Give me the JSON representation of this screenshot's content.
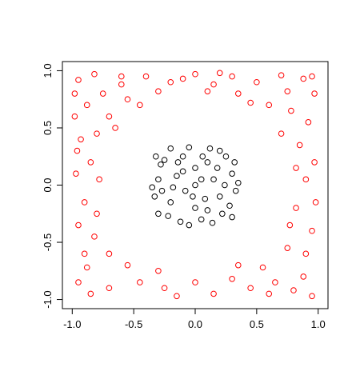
{
  "chart_data": {
    "type": "scatter",
    "xlim": [
      -1.08,
      1.08
    ],
    "ylim": [
      -1.08,
      1.08
    ],
    "xticks": [
      {
        "value": -1,
        "label": "-1.0"
      },
      {
        "value": -0.5,
        "label": "-0.5"
      },
      {
        "value": 0,
        "label": "0.0"
      },
      {
        "value": 0.5,
        "label": "0.5"
      },
      {
        "value": 1,
        "label": "1.0"
      }
    ],
    "yticks": [
      {
        "value": -1,
        "label": "-1.0"
      },
      {
        "value": -0.5,
        "label": "-0.5"
      },
      {
        "value": 0,
        "label": "0.0"
      },
      {
        "value": 0.5,
        "label": "0.5"
      },
      {
        "value": 1,
        "label": "1.0"
      }
    ],
    "series": [
      {
        "color": "#ff0000",
        "x": [
          -0.95,
          -0.82,
          -0.6,
          -0.4,
          -0.2,
          0.0,
          0.15,
          0.3,
          0.5,
          0.7,
          0.88,
          0.97,
          -0.98,
          -0.88,
          -0.75,
          -0.55,
          -0.3,
          0.1,
          0.35,
          0.6,
          0.78,
          0.92,
          -0.7,
          -0.93,
          -0.8,
          0.85,
          0.97,
          -0.97,
          -0.85,
          0.9,
          -0.9,
          0.82,
          -0.95,
          0.95,
          -0.82,
          0.75,
          -0.7,
          0.9,
          -0.9,
          -0.55,
          0.55,
          -0.95,
          -0.85,
          -0.7,
          -0.45,
          -0.25,
          0.0,
          0.15,
          0.3,
          0.45,
          0.65,
          0.8,
          0.95,
          -0.6,
          0.2,
          0.45,
          -0.45,
          -0.65,
          0.7,
          -0.8,
          0.88,
          0.98,
          -0.98,
          0.6,
          -0.3,
          0.35,
          -0.1,
          0.95,
          -0.15,
          0.75,
          -0.88,
          0.82,
          -0.78,
          0.77,
          -0.96
        ],
        "y": [
          0.92,
          0.97,
          0.88,
          0.95,
          0.9,
          0.97,
          0.88,
          0.95,
          0.9,
          0.96,
          0.93,
          0.8,
          0.6,
          0.7,
          0.8,
          0.75,
          0.82,
          0.82,
          0.8,
          0.7,
          0.65,
          0.55,
          0.6,
          0.4,
          0.45,
          0.35,
          0.2,
          0.1,
          0.2,
          0.05,
          -0.15,
          -0.2,
          -0.35,
          -0.4,
          -0.45,
          -0.55,
          -0.6,
          -0.6,
          -0.6,
          -0.7,
          -0.72,
          -0.85,
          -0.95,
          -0.9,
          -0.85,
          -0.9,
          -0.85,
          -0.95,
          -0.82,
          -0.9,
          -0.85,
          -0.92,
          -0.97,
          0.95,
          0.98,
          0.72,
          0.7,
          0.5,
          0.45,
          -0.25,
          -0.8,
          -0.15,
          0.8,
          -0.95,
          -0.75,
          -0.7,
          0.93,
          0.95,
          -0.97,
          0.82,
          -0.72,
          0.15,
          0.05,
          -0.35,
          0.3
        ]
      },
      {
        "color": "#000000",
        "x": [
          0,
          0.1,
          -0.1,
          0.2,
          -0.2,
          0.3,
          -0.3,
          0.05,
          -0.05,
          0.25,
          -0.25,
          0.22,
          -0.22,
          0.15,
          -0.15,
          0.08,
          -0.08,
          0.33,
          -0.33,
          0.12,
          -0.12,
          0.28,
          -0.28,
          0.0,
          0.0,
          0.18,
          -0.18,
          0.05,
          -0.05,
          0.35,
          -0.35,
          0.1,
          -0.1,
          0.2,
          -0.2,
          0.3,
          -0.3,
          0.06,
          -0.27,
          0.24,
          -0.02,
          0.14,
          -0.14,
          0.32,
          -0.32
        ],
        "y": [
          0,
          0.2,
          0.25,
          -0.1,
          -0.15,
          0.1,
          0.05,
          -0.3,
          0.33,
          0.25,
          0.22,
          -0.25,
          -0.27,
          0.05,
          0.08,
          -0.12,
          -0.05,
          -0.05,
          -0.1,
          0.32,
          -0.32,
          -0.18,
          0.18,
          0.15,
          -0.2,
          0.15,
          -0.02,
          0.05,
          -0.35,
          0.02,
          -0.02,
          -0.22,
          0.12,
          0.3,
          0.32,
          -0.28,
          -0.25,
          0.25,
          -0.05,
          0.0,
          -0.1,
          -0.33,
          0.2,
          0.2,
          0.25
        ]
      }
    ]
  }
}
